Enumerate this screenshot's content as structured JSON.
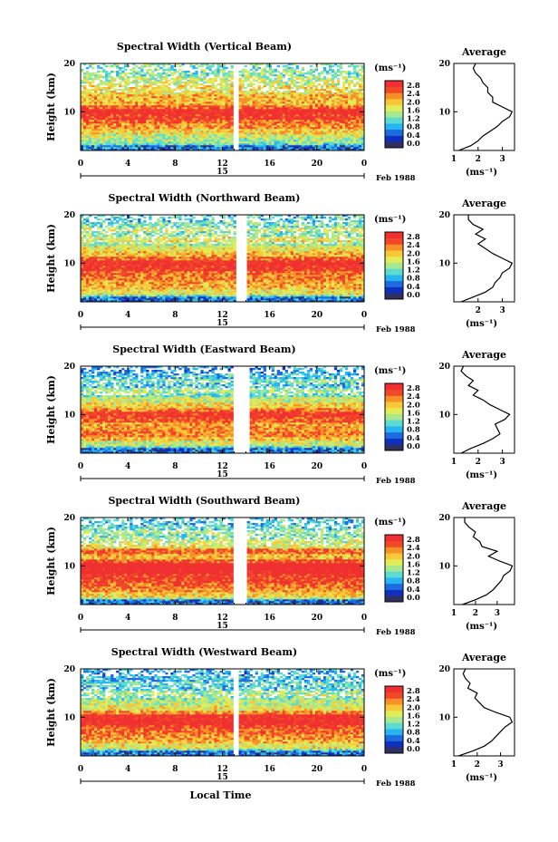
{
  "figure": {
    "xlabel": "Local Time",
    "date_label": "Feb 1988",
    "day_label": "15",
    "colorbar_unit": "(ms⁻¹)",
    "colorbar_ticks": [
      "0.0",
      "0.4",
      "0.8",
      "1.2",
      "1.6",
      "2.0",
      "2.4",
      "2.8"
    ],
    "colorbar_colors": [
      "#303060",
      "#1030c0",
      "#1c6ce0",
      "#28b4f0",
      "#5cdcd0",
      "#a8e890",
      "#e0ec58",
      "#f8c838",
      "#f89028",
      "#f04828",
      "#f03030"
    ],
    "avg_title": "Average",
    "avg_xlabel": "(ms⁻¹)"
  },
  "chart_data": [
    {
      "type": "heatmap",
      "title": "Spectral Width (Vertical Beam)",
      "xlabel": "Local Time",
      "ylabel": "Height (km)",
      "xticks": [
        "0",
        "4",
        "8",
        "12",
        "16",
        "20",
        "0"
      ],
      "yticks": [
        "10",
        "20"
      ],
      "xlim": [
        0,
        24
      ],
      "ylim": [
        2,
        20
      ],
      "gap_hours": [
        13.0,
        13.3
      ],
      "colorbar": {
        "unit": "(ms⁻¹)",
        "ticks": [
          0.0,
          0.4,
          0.8,
          1.2,
          1.6,
          2.0,
          2.4,
          2.8
        ]
      },
      "average": {
        "title": "Average",
        "xlabel": "(ms⁻¹)",
        "xticks": [
          "1",
          "2",
          "3"
        ],
        "xlim": [
          1.0,
          3.5
        ],
        "ylim": [
          2,
          20
        ],
        "height_km": [
          2,
          3,
          4,
          5,
          6,
          7,
          8,
          9,
          10,
          11,
          12,
          13,
          14,
          15,
          16,
          17,
          18,
          19,
          20
        ],
        "width": [
          1.2,
          1.7,
          2.0,
          2.2,
          2.5,
          2.8,
          3.0,
          3.3,
          3.4,
          3.0,
          2.6,
          2.6,
          2.4,
          2.4,
          2.2,
          2.1,
          1.9,
          1.8,
          1.9
        ]
      }
    },
    {
      "type": "heatmap",
      "title": "Spectral Width (Northward Beam)",
      "xlabel": "Local Time",
      "ylabel": "Height (km)",
      "xticks": [
        "0",
        "4",
        "8",
        "12",
        "16",
        "20",
        "0"
      ],
      "yticks": [
        "10",
        "20"
      ],
      "xlim": [
        0,
        24
      ],
      "ylim": [
        2,
        20
      ],
      "gap_hours": [
        13.2,
        14.0
      ],
      "colorbar": {
        "unit": "(ms⁻¹)",
        "ticks": [
          0.0,
          0.4,
          0.8,
          1.2,
          1.6,
          2.0,
          2.4,
          2.8
        ]
      },
      "average": {
        "title": "Average",
        "xlabel": "(ms⁻¹)",
        "xticks": [
          "2",
          "3"
        ],
        "xlim": [
          1.0,
          3.5
        ],
        "ylim": [
          2,
          20
        ],
        "height_km": [
          2,
          3,
          4,
          5,
          6,
          7,
          8,
          9,
          10,
          11,
          12,
          13,
          14,
          15,
          16,
          17,
          18,
          19,
          20
        ],
        "width": [
          1.3,
          1.8,
          2.3,
          2.6,
          2.7,
          2.9,
          3.0,
          3.3,
          3.4,
          3.0,
          2.6,
          2.3,
          2.0,
          2.3,
          1.9,
          2.2,
          1.8,
          1.6,
          1.6
        ]
      }
    },
    {
      "type": "heatmap",
      "title": "Spectral Width (Eastward Beam)",
      "xlabel": "Local Time",
      "ylabel": "Height (km)",
      "xticks": [
        "0",
        "4",
        "8",
        "12",
        "16",
        "20",
        "0"
      ],
      "yticks": [
        "10",
        "20"
      ],
      "xlim": [
        0,
        24
      ],
      "ylim": [
        2,
        20
      ],
      "gap_hours": [
        13.0,
        14.2
      ],
      "colorbar": {
        "unit": "(ms⁻¹)",
        "ticks": [
          0.0,
          0.4,
          0.8,
          1.2,
          1.6,
          2.0,
          2.4,
          2.8
        ]
      },
      "average": {
        "title": "Average",
        "xlabel": "(ms⁻¹)",
        "xticks": [
          "1",
          "2",
          "3"
        ],
        "xlim": [
          1.0,
          3.5
        ],
        "ylim": [
          2,
          20
        ],
        "height_km": [
          2,
          3,
          4,
          5,
          6,
          7,
          8,
          9,
          10,
          11,
          12,
          13,
          14,
          15,
          16,
          17,
          18,
          19,
          20
        ],
        "width": [
          1.3,
          1.7,
          2.2,
          2.6,
          2.9,
          2.8,
          2.7,
          3.1,
          3.3,
          2.9,
          2.5,
          2.2,
          1.8,
          2.0,
          1.6,
          1.8,
          1.5,
          1.3,
          1.4
        ]
      }
    },
    {
      "type": "heatmap",
      "title": "Spectral Width (Southward Beam)",
      "xlabel": "Local Time",
      "ylabel": "Height (km)",
      "xticks": [
        "0",
        "4",
        "8",
        "12",
        "16",
        "20",
        "0"
      ],
      "yticks": [
        "10",
        "20"
      ],
      "xlim": [
        0,
        24
      ],
      "ylim": [
        2,
        20
      ],
      "gap_hours": [
        13.0,
        14.0
      ],
      "colorbar": {
        "unit": "(ms⁻¹)",
        "ticks": [
          0.0,
          0.4,
          0.8,
          1.2,
          1.6,
          2.0,
          2.4,
          2.8
        ]
      },
      "average": {
        "title": "Average",
        "xlabel": "(ms⁻¹)",
        "xticks": [
          "1",
          "2",
          "3"
        ],
        "xlim": [
          1.0,
          3.8
        ],
        "ylim": [
          2,
          20
        ],
        "height_km": [
          2,
          3,
          4,
          5,
          6,
          7,
          8,
          9,
          10,
          11,
          12,
          13,
          14,
          15,
          16,
          17,
          18,
          19,
          20
        ],
        "width": [
          1.4,
          2.0,
          2.5,
          2.8,
          3.0,
          3.2,
          3.3,
          3.6,
          3.7,
          3.1,
          2.6,
          3.0,
          2.3,
          2.2,
          1.9,
          2.0,
          1.7,
          1.5,
          1.5
        ]
      }
    },
    {
      "type": "heatmap",
      "title": "Spectral Width (Westward Beam)",
      "xlabel": "Local Time",
      "ylabel": "Height (km)",
      "xticks": [
        "0",
        "4",
        "8",
        "12",
        "16",
        "20",
        "0"
      ],
      "yticks": [
        "10",
        "20"
      ],
      "xlim": [
        0,
        24
      ],
      "ylim": [
        2,
        20
      ],
      "gap_hours": [
        13.0,
        13.4
      ],
      "colorbar": {
        "unit": "(ms⁻¹)",
        "ticks": [
          0.0,
          0.4,
          0.8,
          1.2,
          1.6,
          2.0,
          2.4,
          2.8
        ]
      },
      "average": {
        "title": "Average",
        "xlabel": "(ms⁻¹)",
        "xticks": [
          "1",
          "2",
          "3"
        ],
        "xlim": [
          1.0,
          3.6
        ],
        "ylim": [
          2,
          20
        ],
        "height_km": [
          2,
          3,
          4,
          5,
          6,
          7,
          8,
          9,
          10,
          11,
          12,
          13,
          14,
          15,
          16,
          17,
          18,
          19,
          20
        ],
        "width": [
          1.2,
          1.8,
          2.3,
          2.6,
          2.8,
          3.0,
          3.2,
          3.5,
          3.4,
          2.8,
          2.3,
          2.1,
          1.9,
          2.0,
          1.6,
          1.7,
          1.5,
          1.4,
          1.5
        ]
      }
    }
  ]
}
